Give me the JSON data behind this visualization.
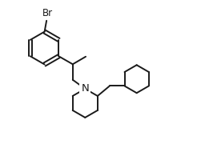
{
  "background_color": "#ffffff",
  "line_color": "#1a1a1a",
  "line_width": 1.4,
  "font_size": 8.5,
  "figsize": [
    2.46,
    1.9
  ],
  "dpi": 100,
  "xlim": [
    0,
    9.8
  ],
  "ylim": [
    0,
    7.5
  ]
}
